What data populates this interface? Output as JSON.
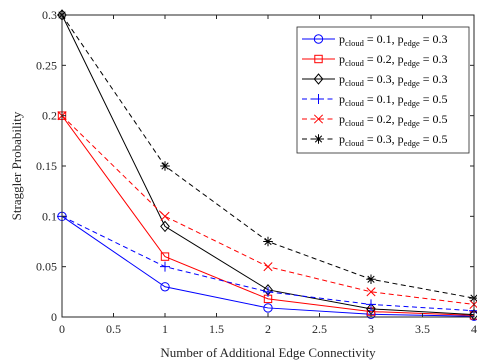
{
  "chart_data": {
    "type": "line",
    "xlabel": "Number of Additional Edge Connectivity",
    "ylabel": "Straggler Probability",
    "xlim": [
      0,
      4
    ],
    "ylim": [
      0,
      0.3
    ],
    "xticks": [
      "0",
      "0.5",
      "1",
      "1.5",
      "2",
      "2.5",
      "3",
      "3.5",
      "4"
    ],
    "yticks": [
      "0",
      "0.05",
      "0.1",
      "0.15",
      "0.2",
      "0.25",
      "0.3"
    ],
    "grid": false,
    "legend_position": "top-right",
    "x": [
      0,
      1,
      2,
      3,
      4
    ],
    "series": [
      {
        "p_cloud": "0.1",
        "p_edge": "0.3",
        "color": "#0000ff",
        "line": "solid",
        "marker": "circle",
        "values": [
          0.1,
          0.03,
          0.009,
          0.0027,
          0.0008
        ]
      },
      {
        "p_cloud": "0.2",
        "p_edge": "0.3",
        "color": "#ff0000",
        "line": "solid",
        "marker": "square",
        "values": [
          0.2,
          0.06,
          0.018,
          0.0054,
          0.0016
        ]
      },
      {
        "p_cloud": "0.3",
        "p_edge": "0.3",
        "color": "#000000",
        "line": "solid",
        "marker": "diamond",
        "values": [
          0.3,
          0.09,
          0.027,
          0.0081,
          0.0024
        ]
      },
      {
        "p_cloud": "0.1",
        "p_edge": "0.5",
        "color": "#0000ff",
        "line": "dashed",
        "marker": "plus",
        "values": [
          0.1,
          0.05,
          0.025,
          0.0125,
          0.00625
        ]
      },
      {
        "p_cloud": "0.2",
        "p_edge": "0.5",
        "color": "#ff0000",
        "line": "dashed",
        "marker": "x",
        "values": [
          0.2,
          0.1,
          0.05,
          0.025,
          0.0125
        ]
      },
      {
        "p_cloud": "0.3",
        "p_edge": "0.5",
        "color": "#000000",
        "line": "dashed",
        "marker": "asterisk",
        "values": [
          0.3,
          0.15,
          0.075,
          0.0375,
          0.01875
        ]
      }
    ]
  }
}
